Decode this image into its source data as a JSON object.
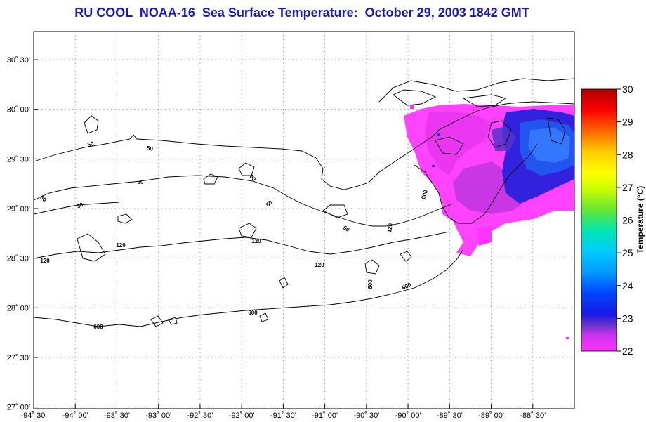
{
  "title": "RU COOL  NOAA-16  Sea Surface Temperature:  October 29, 2003 1842 GMT",
  "map": {
    "lon_range": [
      -94.5,
      -88.0
    ],
    "lat_range": [
      26.9833,
      30.7833
    ],
    "lon_ticks": [
      {
        "value": -94.5,
        "label": "-94˚ 30'"
      },
      {
        "value": -94.0,
        "label": "-94˚ 00'"
      },
      {
        "value": -93.5,
        "label": "-93˚ 30'"
      },
      {
        "value": -93.0,
        "label": "-93˚ 00'"
      },
      {
        "value": -92.5,
        "label": "-92˚ 30'"
      },
      {
        "value": -92.0,
        "label": "-92˚ 00'"
      },
      {
        "value": -91.5,
        "label": "-91˚ 30'"
      },
      {
        "value": -91.0,
        "label": "-91˚ 00'"
      },
      {
        "value": -90.5,
        "label": "-90˚ 30'"
      },
      {
        "value": -90.0,
        "label": "-90˚ 00'"
      },
      {
        "value": -89.5,
        "label": "-89˚ 30'"
      },
      {
        "value": -89.0,
        "label": "-89˚ 00'"
      },
      {
        "value": -88.5,
        "label": "-88˚ 30'"
      }
    ],
    "lat_ticks": [
      {
        "value": 30.5,
        "label": "30˚ 30'"
      },
      {
        "value": 30.0,
        "label": "30˚ 00'"
      },
      {
        "value": 29.5,
        "label": "29˚ 30'"
      },
      {
        "value": 29.0,
        "label": "29˚ 00'"
      },
      {
        "value": 28.5,
        "label": "28˚ 30'"
      },
      {
        "value": 28.0,
        "label": "28˚ 00'"
      },
      {
        "value": 27.5,
        "label": "27˚ 30'"
      },
      {
        "value": 27.0,
        "label": "27˚ 00'"
      }
    ],
    "grid": true,
    "contour_labels": [
      "50",
      "50",
      "50",
      "50",
      "50",
      "50",
      "50",
      "50",
      "120",
      "120",
      "120",
      "120",
      "120",
      "600",
      "600",
      "600",
      "600",
      "600"
    ]
  },
  "colorbar": {
    "title": "Temperature (°C)",
    "min": 22,
    "max": 30,
    "labels": [
      "30",
      "29",
      "28",
      "27",
      "26",
      "25",
      "24",
      "23",
      "22"
    ],
    "colors": [
      "#ff33ff",
      "#cc33ee",
      "#6633cc",
      "#1a1ae6",
      "#0066ff",
      "#00ccff",
      "#00e6b3",
      "#99e600",
      "#ffff00",
      "#ffcc00",
      "#ff6600",
      "#ff0000",
      "#aa0000"
    ]
  }
}
